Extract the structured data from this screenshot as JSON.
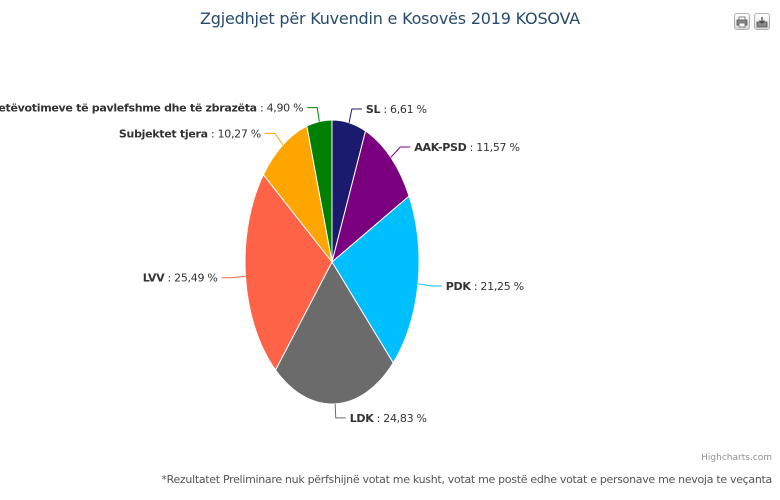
{
  "title": "Zgjedhjet për Kuvendin e Kosovës 2019 KOSOVA",
  "credits": "Highcharts.com",
  "footnote": "*Rezultatet Preliminare nuk përfshijnë votat me kusht, votat me postë edhe votat e personave me nevoja te veçanta",
  "toolbar": {
    "print_icon": "printer-icon",
    "export_icon": "export-icon"
  },
  "chart_data": {
    "type": "pie",
    "title": "Zgjedhjet për Kuvendin e Kosovës 2019 KOSOVA",
    "slices": [
      {
        "name": "SL",
        "value": 6.61,
        "value_label": "6,61 %",
        "color": "#1a1a6e"
      },
      {
        "name": "AAK-PSD",
        "value": 11.57,
        "value_label": "11,57 %",
        "color": "#7b0080"
      },
      {
        "name": "PDK",
        "value": 21.25,
        "value_label": "21,25 %",
        "color": "#00bfff"
      },
      {
        "name": "LDK",
        "value": 24.83,
        "value_label": "24,83 %",
        "color": "#6b6b6b"
      },
      {
        "name": "LVV",
        "value": 25.49,
        "value_label": "25,49 %",
        "color": "#ff6347"
      },
      {
        "name": "Subjektet tjera",
        "value": 10.27,
        "value_label": "10,27 %",
        "color": "#ffa500"
      },
      {
        "name": "Numri i fletëvotimeve të pavlefshme dhe të zbrazëta",
        "value": 4.9,
        "value_label": "4,90 %",
        "color": "#008000"
      }
    ]
  }
}
